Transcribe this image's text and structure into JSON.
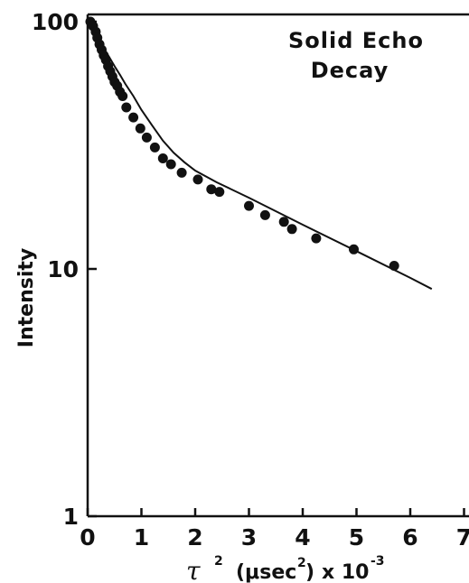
{
  "chart_data": {
    "type": "scatter",
    "title": [
      "Solid Echo",
      "Decay"
    ],
    "xlabel": {
      "symbol": "τ",
      "power": "2",
      "unit_open": "(μsec",
      "unit_power": "2",
      "unit_close": ")",
      "scale_text": "x 10",
      "scale_power": "-3"
    },
    "ylabel": "Intensity",
    "xlim": [
      0,
      7
    ],
    "ylim": [
      1,
      100
    ],
    "yscale": "log",
    "x_ticks": [
      "0",
      "1",
      "2",
      "3",
      "4",
      "5",
      "6",
      "7"
    ],
    "y_ticks": [
      "1",
      "10",
      "100"
    ],
    "grid": false,
    "series": [
      {
        "kind": "points",
        "x": [
          0.05,
          0.1,
          0.15,
          0.18,
          0.22,
          0.26,
          0.3,
          0.34,
          0.38,
          0.42,
          0.46,
          0.5,
          0.55,
          0.6,
          0.65,
          0.72,
          0.85,
          0.98,
          1.1,
          1.25,
          1.4,
          1.55,
          1.75,
          2.05,
          2.3,
          2.45,
          3.0,
          3.3,
          3.65,
          3.8,
          4.25,
          4.95,
          5.7
        ],
        "y": [
          100,
          96,
          91,
          86,
          81,
          77,
          73,
          70,
          66,
          63,
          60,
          57,
          55,
          52,
          50,
          45,
          41,
          37,
          34,
          31,
          28,
          26.5,
          24.5,
          23,
          21,
          20.5,
          18,
          16.5,
          15.5,
          14.5,
          13.3,
          12,
          10.3
        ]
      },
      {
        "kind": "fit-line",
        "x": [
          0.0,
          0.1,
          0.2,
          0.3,
          0.4,
          0.5,
          0.6,
          0.7,
          0.85,
          1.0,
          1.2,
          1.4,
          1.6,
          1.8,
          2.0,
          2.4,
          3.0,
          4.0,
          5.0,
          6.0,
          6.4
        ],
        "y": [
          100,
          92,
          85,
          78,
          72,
          66,
          61,
          56,
          50,
          44,
          38,
          33,
          29.5,
          27,
          25,
          22.4,
          19.4,
          15.1,
          11.8,
          9.2,
          8.3
        ]
      }
    ]
  }
}
